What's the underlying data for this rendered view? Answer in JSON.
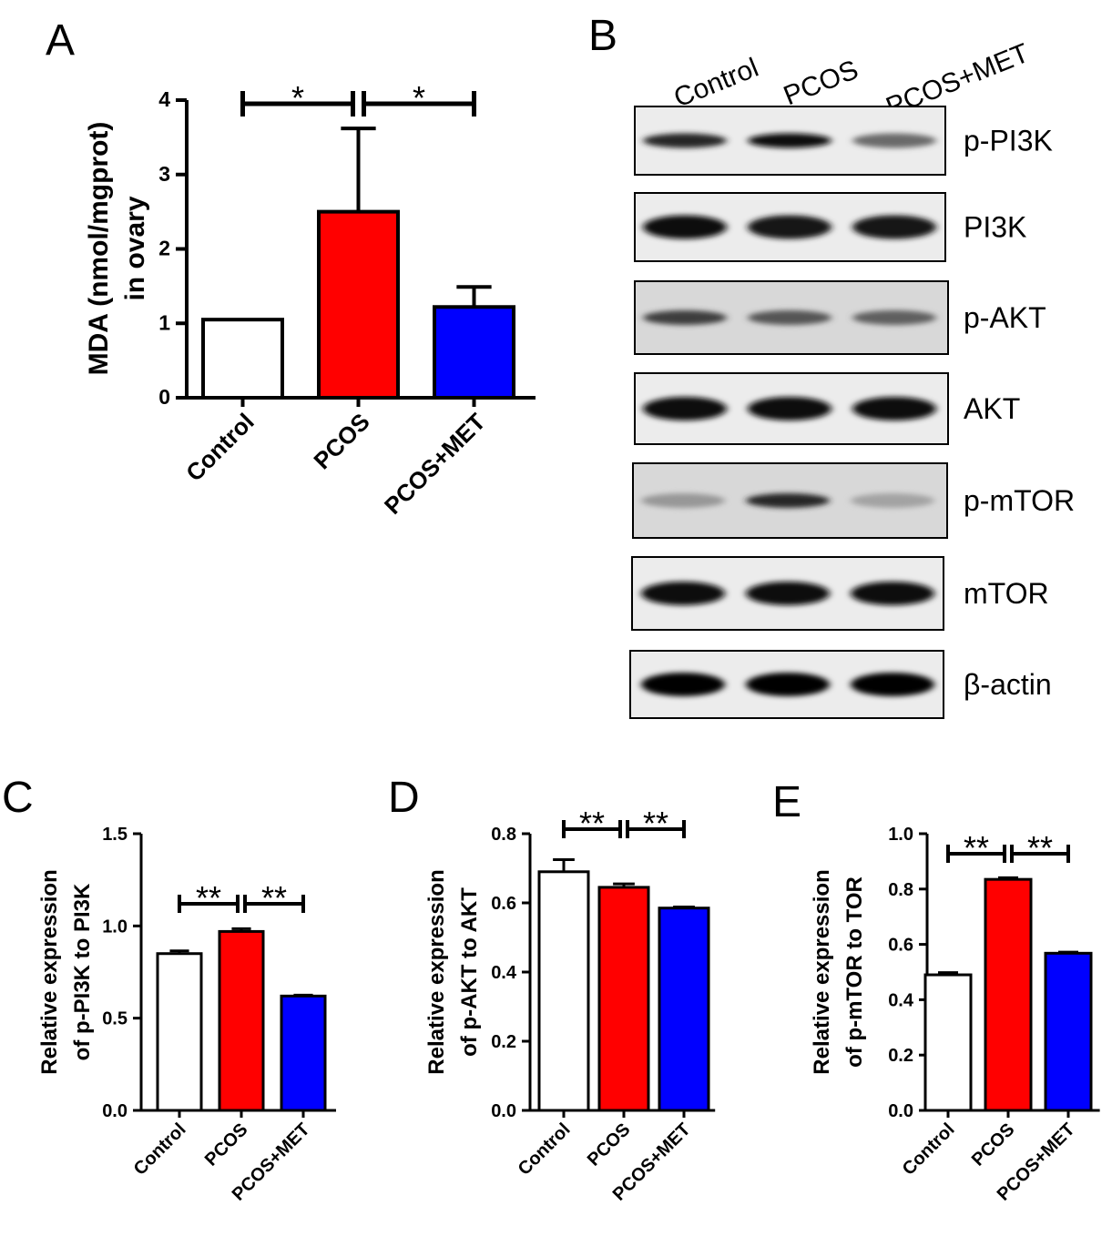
{
  "panel_labels": {
    "a": "A",
    "b": "B",
    "c": "C",
    "d": "D",
    "e": "E"
  },
  "colors": {
    "control": "#ffffff",
    "pcos": "#ff0000",
    "pcos_met": "#0000ff",
    "outline": "#000000"
  },
  "chart_data": [
    {
      "panel": "A",
      "type": "bar",
      "categories": [
        "Control",
        "PCOS",
        "PCOS+MET"
      ],
      "values": [
        1.05,
        2.5,
        1.22
      ],
      "errors": [
        0.0,
        1.12,
        0.27
      ],
      "colors": [
        "#ffffff",
        "#ff0000",
        "#0000ff"
      ],
      "ylabel_lines": [
        "MDA (nmol/mgprot)",
        "in ovary"
      ],
      "ylim": [
        0,
        4
      ],
      "yticks": [
        "0",
        "1",
        "2",
        "3",
        "4"
      ],
      "significance": [
        {
          "from": 0,
          "to": 1,
          "label": "*"
        },
        {
          "from": 1,
          "to": 2,
          "label": "*"
        }
      ]
    },
    {
      "panel": "C",
      "type": "bar",
      "categories": [
        "Control",
        "PCOS",
        "PCOS+MET"
      ],
      "values": [
        0.85,
        0.97,
        0.62
      ],
      "errors": [
        0.015,
        0.015,
        0.005
      ],
      "colors": [
        "#ffffff",
        "#ff0000",
        "#0000ff"
      ],
      "ylabel_lines": [
        "Relative expression",
        "of p-PI3K to PI3K"
      ],
      "ylim": [
        0,
        1.5
      ],
      "yticks": [
        "0.0",
        "0.5",
        "1.0",
        "1.5"
      ],
      "significance": [
        {
          "from": 0,
          "to": 1,
          "label": "**"
        },
        {
          "from": 1,
          "to": 2,
          "label": "**"
        }
      ]
    },
    {
      "panel": "D",
      "type": "bar",
      "categories": [
        "Control",
        "PCOS",
        "PCOS+MET"
      ],
      "values": [
        0.69,
        0.645,
        0.585
      ],
      "errors": [
        0.035,
        0.01,
        0.003
      ],
      "colors": [
        "#ffffff",
        "#ff0000",
        "#0000ff"
      ],
      "ylabel_lines": [
        "Relative expression",
        "of p-AKT to AKT"
      ],
      "ylim": [
        0,
        0.8
      ],
      "yticks": [
        "0.0",
        "0.2",
        "0.4",
        "0.6",
        "0.8"
      ],
      "significance": [
        {
          "from": 0,
          "to": 1,
          "label": "**"
        },
        {
          "from": 1,
          "to": 2,
          "label": "**"
        }
      ]
    },
    {
      "panel": "E",
      "type": "bar",
      "categories": [
        "Control",
        "PCOS",
        "PCOS+MET"
      ],
      "values": [
        0.49,
        0.835,
        0.568
      ],
      "errors": [
        0.008,
        0.006,
        0.004
      ],
      "colors": [
        "#ffffff",
        "#ff0000",
        "#0000ff"
      ],
      "ylabel_lines": [
        "Relative expression",
        "of p-mTOR to TOR"
      ],
      "ylim": [
        0,
        1.0
      ],
      "yticks": [
        "0.0",
        "0.2",
        "0.4",
        "0.6",
        "0.8",
        "1.0"
      ],
      "significance": [
        {
          "from": 0,
          "to": 1,
          "label": "**"
        },
        {
          "from": 1,
          "to": 2,
          "label": "**"
        }
      ]
    }
  ],
  "western_blot": {
    "lanes": [
      "Control",
      "PCOS",
      "PCOS+MET"
    ],
    "proteins": [
      {
        "name": "p-PI3K",
        "intensity": [
          0.85,
          0.95,
          0.55
        ]
      },
      {
        "name": "PI3K",
        "intensity": [
          0.95,
          0.92,
          0.92
        ]
      },
      {
        "name": "p-AKT",
        "intensity": [
          0.75,
          0.65,
          0.6
        ]
      },
      {
        "name": "AKT",
        "intensity": [
          0.95,
          0.95,
          0.95
        ]
      },
      {
        "name": "p-mTOR",
        "intensity": [
          0.35,
          0.85,
          0.3
        ]
      },
      {
        "name": "mTOR",
        "intensity": [
          0.95,
          0.95,
          0.95
        ]
      },
      {
        "name": "β-actin",
        "intensity": [
          1.0,
          1.0,
          1.0
        ]
      }
    ]
  }
}
